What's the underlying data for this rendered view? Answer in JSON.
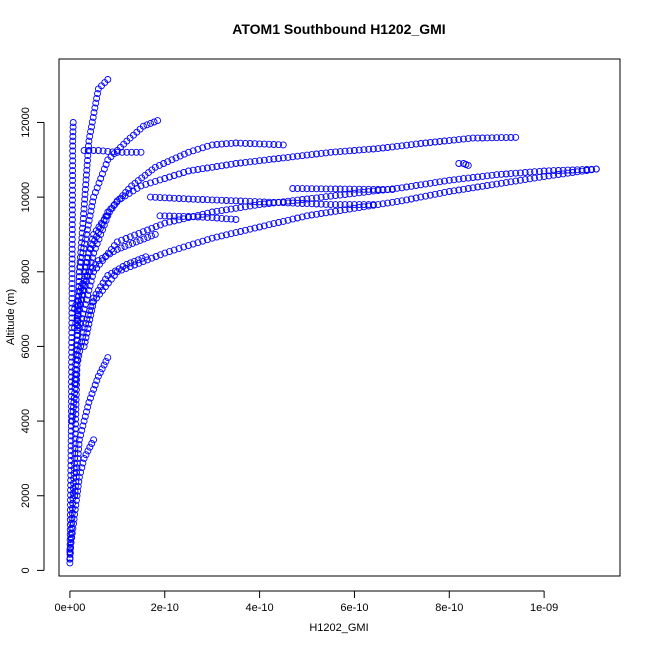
{
  "chart_data": {
    "type": "scatter",
    "title": "ATOM1 Southbound H1202_GMI",
    "xlabel": "H1202_GMI",
    "ylabel": "Altitude (m)",
    "xlim": [
      -2.3e-11,
      1.16e-09
    ],
    "ylim": [
      -150,
      13700
    ],
    "x_ticks": [
      0,
      2e-10,
      4e-10,
      6e-10,
      8e-10,
      1e-09
    ],
    "x_tick_labels": [
      "0e+00",
      "2e-10",
      "4e-10",
      "6e-10",
      "8e-10",
      "1e-09"
    ],
    "y_ticks": [
      0,
      2000,
      4000,
      6000,
      8000,
      10000,
      12000
    ],
    "y_tick_labels": [
      "0",
      "2000",
      "4000",
      "6000",
      "8000",
      "10000",
      "12000"
    ],
    "grid": false,
    "legend": "none",
    "marker": "open-circle",
    "color": "#0000ff",
    "series": [
      {
        "x": [
          0,
          1e-11,
          2e-11,
          4e-11,
          6e-11,
          8e-11
        ],
        "y": [
          200,
          3000,
          8000,
          11500,
          12900,
          13150
        ]
      },
      {
        "x": [
          0,
          3e-12,
          5e-12,
          6e-12,
          7e-12
        ],
        "y": [
          300,
          4000,
          9000,
          11500,
          12000
        ]
      },
      {
        "x": [
          1e-11,
          2e-11,
          5e-11,
          8e-11,
          1.2e-10,
          1.55e-10,
          1.85e-10
        ],
        "y": [
          5000,
          8000,
          10000,
          11000,
          11500,
          11900,
          12050
        ]
      },
      {
        "x": [
          3e-11,
          6e-11,
          1e-10,
          1.5e-10
        ],
        "y": [
          11250,
          11250,
          11200,
          11200
        ]
      },
      {
        "x": [
          2e-11,
          4e-11,
          8e-11,
          1.3e-10,
          1.8e-10,
          2.5e-10,
          3e-10,
          3.5e-10,
          4.5e-10
        ],
        "y": [
          7000,
          8500,
          9600,
          10300,
          10800,
          11200,
          11400,
          11450,
          11400
        ]
      },
      {
        "x": [
          3e-11,
          5e-11,
          1e-10,
          1.5e-10,
          2.5e-10,
          3.5e-10,
          4.5e-10,
          5.5e-10,
          6.5e-10,
          7.5e-10,
          8.5e-10,
          9.4e-10
        ],
        "y": [
          8000,
          9000,
          9900,
          10300,
          10700,
          10900,
          11050,
          11200,
          11300,
          11450,
          11580,
          11600
        ]
      },
      {
        "x": [
          2e-11,
          5e-11,
          1e-10,
          2e-10,
          3e-10,
          4e-10,
          5e-10,
          6e-10,
          7e-10,
          8e-10,
          9e-10,
          1e-09,
          1.11e-09
        ],
        "y": [
          6500,
          8000,
          8800,
          9300,
          9600,
          9800,
          9950,
          10100,
          10250,
          10450,
          10600,
          10700,
          10750
        ]
      },
      {
        "x": [
          3e-11,
          5e-11,
          1e-10,
          2e-10,
          3e-10,
          4e-10,
          5e-10,
          6e-10,
          7e-10,
          8e-10,
          9e-10,
          1e-09,
          1.11e-09
        ],
        "y": [
          6000,
          7200,
          8000,
          8500,
          8900,
          9200,
          9500,
          9700,
          9900,
          10150,
          10350,
          10550,
          10750
        ]
      },
      {
        "x": [
          1.7e-10,
          2.5e-10,
          3.5e-10,
          4.5e-10,
          5.5e-10,
          6.4e-10
        ],
        "y": [
          10000,
          9950,
          9900,
          9850,
          9800,
          9800
        ]
      },
      {
        "x": [
          1.9e-10,
          2.5e-10,
          3e-10,
          3.5e-10
        ],
        "y": [
          9500,
          9480,
          9450,
          9400
        ]
      },
      {
        "x": [
          4.7e-10,
          5.5e-10,
          6.2e-10,
          6.8e-10
        ],
        "y": [
          10230,
          10220,
          10210,
          10200
        ]
      },
      {
        "x": [
          8.2e-10,
          8.3e-10,
          8.4e-10
        ],
        "y": [
          10900,
          10900,
          10850
        ]
      },
      {
        "x": [
          1e-11,
          3e-11,
          6e-11,
          1e-10,
          1.4e-10,
          1.8e-10
        ],
        "y": [
          7000,
          7800,
          8300,
          8600,
          8800,
          9000
        ]
      },
      {
        "x": [
          1e-11,
          3e-11,
          5e-11,
          8e-11
        ],
        "y": [
          6500,
          7500,
          8500,
          9500
        ]
      },
      {
        "x": [
          1e-11,
          2e-11,
          4e-11,
          6e-11,
          8e-11
        ],
        "y": [
          2000,
          3500,
          4500,
          5200,
          5700
        ]
      },
      {
        "x": [
          0,
          1e-11,
          2e-11,
          3e-11,
          5e-11
        ],
        "y": [
          500,
          1500,
          2500,
          3000,
          3500
        ]
      },
      {
        "x": [
          5e-12,
          1.5e-11,
          3e-11,
          5e-11,
          8e-11,
          1.2e-10,
          1.6e-10
        ],
        "y": [
          4000,
          5500,
          6500,
          7300,
          7900,
          8200,
          8400
        ]
      }
    ]
  }
}
